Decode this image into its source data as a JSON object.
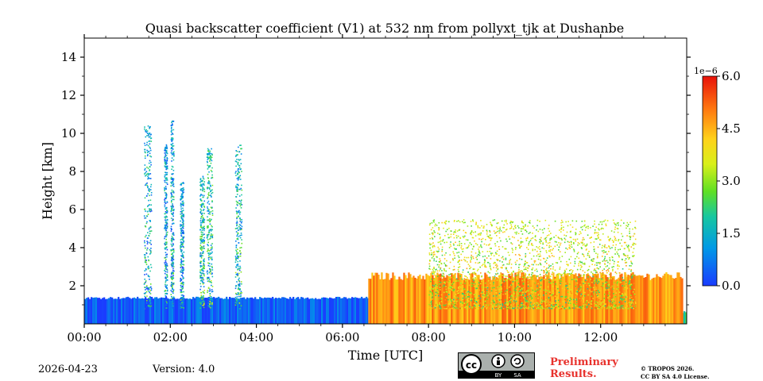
{
  "chart_data": {
    "type": "heatmap",
    "title": "Quasi backscatter coefficient (V1) at 532 nm from pollyxt_tjk at Dushanbe",
    "xlabel": "Time [UTC]",
    "ylabel": "Height [km]",
    "xlim_hours": [
      0,
      14
    ],
    "ylim_km": [
      0,
      15
    ],
    "x_ticks": [
      {
        "hour": 0,
        "label": "00:00"
      },
      {
        "hour": 2,
        "label": "02:00"
      },
      {
        "hour": 4,
        "label": "04:00"
      },
      {
        "hour": 6,
        "label": "06:00"
      },
      {
        "hour": 8,
        "label": "08:00"
      },
      {
        "hour": 10,
        "label": "10:00"
      },
      {
        "hour": 12,
        "label": "12:00"
      }
    ],
    "y_ticks": [
      {
        "km": 2,
        "label": "2"
      },
      {
        "km": 4,
        "label": "4"
      },
      {
        "km": 6,
        "label": "6"
      },
      {
        "km": 8,
        "label": "8"
      },
      {
        "km": 10,
        "label": "10"
      },
      {
        "km": 12,
        "label": "12"
      },
      {
        "km": 14,
        "label": "14"
      }
    ],
    "colorbar": {
      "min": 0.0,
      "max": 6.0,
      "multiplier_label": "1e−6",
      "ticks": [
        {
          "value": 0.0,
          "label": "0.0"
        },
        {
          "value": 1.5,
          "label": "1.5"
        },
        {
          "value": 3.0,
          "label": "3.0"
        },
        {
          "value": 4.5,
          "label": "4.5"
        },
        {
          "value": 6.0,
          "label": "6.0"
        }
      ]
    },
    "features": [
      {
        "name": "near-surface layer",
        "t_start": 0.0,
        "t_end": 14.0,
        "top_km": 0.55,
        "level": 2.3
      },
      {
        "name": "boundary layer (night)",
        "t_start": 0.0,
        "t_end": 6.6,
        "top_km": 1.3,
        "level": 0.4
      },
      {
        "name": "boundary layer (day)",
        "t_start": 6.6,
        "t_end": 13.9,
        "top_km": 2.3,
        "level": 4.8
      },
      {
        "name": "cloud column",
        "t_start": 1.38,
        "t_end": 1.55,
        "top_km": 10.5,
        "level": 1.2
      },
      {
        "name": "cloud column",
        "t_start": 1.85,
        "t_end": 1.92,
        "top_km": 9.5,
        "level": 1.0
      },
      {
        "name": "cloud column",
        "t_start": 2.0,
        "t_end": 2.07,
        "top_km": 10.7,
        "level": 1.0
      },
      {
        "name": "cloud column",
        "t_start": 2.22,
        "t_end": 2.3,
        "top_km": 7.5,
        "level": 1.0
      },
      {
        "name": "cloud column",
        "t_start": 2.68,
        "t_end": 2.78,
        "top_km": 7.8,
        "level": 1.5
      },
      {
        "name": "cloud column",
        "t_start": 2.84,
        "t_end": 2.97,
        "top_km": 9.3,
        "level": 1.6
      },
      {
        "name": "cloud column",
        "t_start": 3.5,
        "t_end": 3.65,
        "top_km": 9.5,
        "level": 1.4
      },
      {
        "name": "aerosol plume",
        "t_start": 8.0,
        "t_end": 12.8,
        "top_km": 5.5,
        "level": 3.2
      }
    ]
  },
  "footer": {
    "date": "2026-04-23",
    "version": "Version: 4.0",
    "license_badge": {
      "cc": "cc",
      "by": "BY",
      "sa": "SA"
    },
    "preliminary_line1": "Preliminary",
    "preliminary_line2": "Results.",
    "copyright_line1": "© TROPOS 2026.",
    "copyright_line2": "CC BY SA 4.0 License."
  }
}
